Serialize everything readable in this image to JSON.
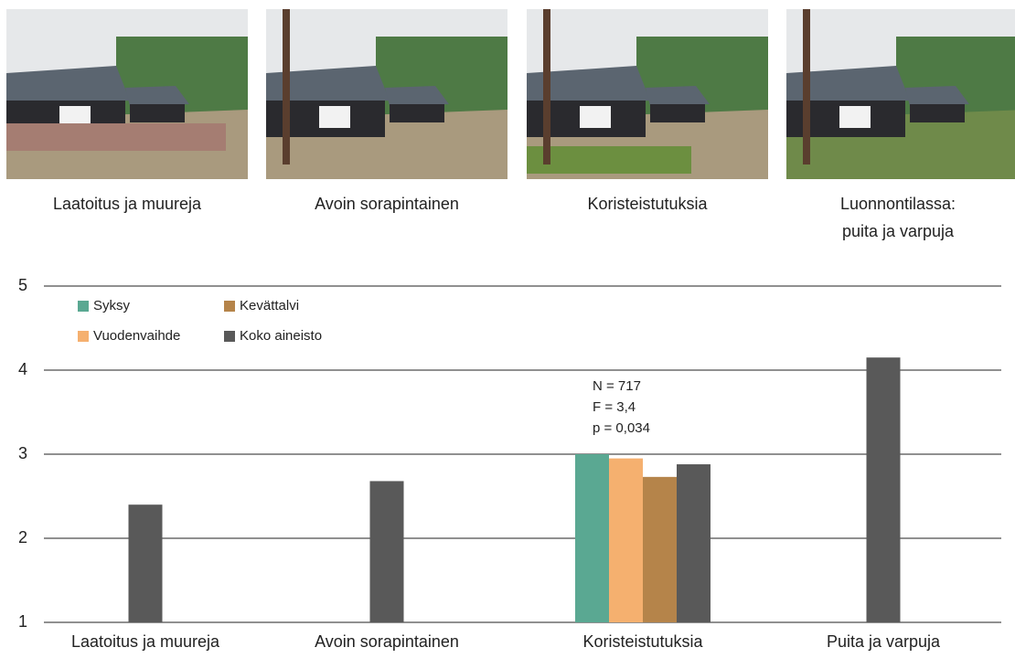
{
  "photos": [
    {
      "caption": [
        "Laatoitus ja muureja"
      ]
    },
    {
      "caption": [
        "Avoin sorapintainen"
      ]
    },
    {
      "caption": [
        "Koristeistutuksia"
      ]
    },
    {
      "caption": [
        "Luonnontilassa:",
        "puita ja varpuja"
      ]
    }
  ],
  "chart_data": {
    "type": "bar",
    "categories": [
      "Laatoitus ja muureja",
      "Avoin sorapintainen",
      "Koristeistutuksia",
      "Puita ja varpuja"
    ],
    "series": [
      {
        "name": "Syksy",
        "color": "#5aa892",
        "values": [
          null,
          null,
          3.0,
          null
        ]
      },
      {
        "name": "Vuodenvaihde",
        "color": "#f5b06f",
        "values": [
          null,
          null,
          2.95,
          null
        ]
      },
      {
        "name": "Kevättalvi",
        "color": "#b5844a",
        "values": [
          null,
          null,
          2.73,
          null
        ]
      },
      {
        "name": "Koko aineisto",
        "color": "#595959",
        "values": [
          2.4,
          2.68,
          2.88,
          4.15
        ]
      }
    ],
    "annotations": [
      "N = 717",
      "F = 3,4",
      "p = 0,034"
    ],
    "ylim": [
      1,
      5
    ],
    "yticks": [
      1,
      2,
      3,
      4,
      5
    ],
    "grid": true,
    "legend": "top-left"
  }
}
